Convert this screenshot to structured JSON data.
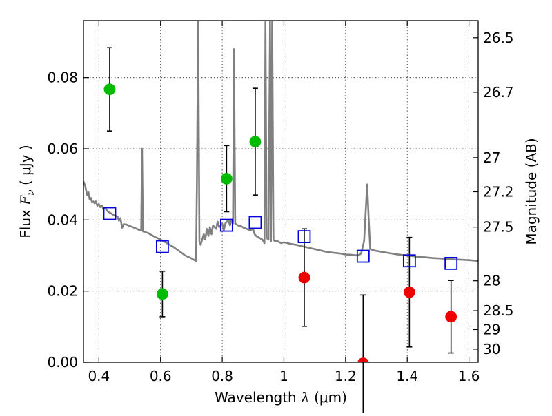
{
  "chart_data": {
    "type": "scatter",
    "title": "",
    "xlabel": {
      "prefix": "Wavelength  ",
      "symbol": "λ",
      "unit": " (μm)"
    },
    "ylabel": {
      "prefix": "Flux  ",
      "symbol": "F",
      "subscript": "ν",
      "unit": "  ( μJy )"
    },
    "y2label": "Magnitude (AB)",
    "xlim": [
      0.35,
      1.63
    ],
    "ylim": [
      0.0,
      0.096
    ],
    "grid": true,
    "x_ticks": [
      {
        "value": 0.4,
        "label": "0.4"
      },
      {
        "value": 0.6,
        "label": "0.6"
      },
      {
        "value": 0.8,
        "label": "0.8"
      },
      {
        "value": 1.0,
        "label": "1"
      },
      {
        "value": 1.2,
        "label": "1.2"
      },
      {
        "value": 1.4,
        "label": "1.4"
      },
      {
        "value": 1.6,
        "label": "1.6"
      }
    ],
    "y_ticks": [
      {
        "value": 0.0,
        "label": "0.00"
      },
      {
        "value": 0.02,
        "label": "0.02"
      },
      {
        "value": 0.04,
        "label": "0.04"
      },
      {
        "value": 0.06,
        "label": "0.06"
      },
      {
        "value": 0.08,
        "label": "0.08"
      }
    ],
    "y2_ticks": [
      {
        "flux": 0.0912,
        "label": "26.5"
      },
      {
        "flux": 0.0759,
        "label": "26.7"
      },
      {
        "flux": 0.0575,
        "label": "27"
      },
      {
        "flux": 0.0479,
        "label": "27.2"
      },
      {
        "flux": 0.038,
        "label": "27.5"
      },
      {
        "flux": 0.0229,
        "label": "28"
      },
      {
        "flux": 0.0145,
        "label": "28.5"
      },
      {
        "flux": 0.0092,
        "label": "29"
      },
      {
        "flux": 0.0037,
        "label": "30"
      }
    ],
    "series": [
      {
        "marker": "circle",
        "color": "#00bb00",
        "points": [
          {
            "x": 0.435,
            "y": 0.0767,
            "err": 0.0117
          },
          {
            "x": 0.606,
            "y": 0.0192,
            "err": 0.0064
          },
          {
            "x": 0.814,
            "y": 0.0516,
            "err": 0.0093
          },
          {
            "x": 0.907,
            "y": 0.062,
            "err": 0.015
          }
        ]
      },
      {
        "marker": "circle",
        "color": "#ee0000",
        "points": [
          {
            "x": 1.066,
            "y": 0.0238,
            "err": 0.0137
          },
          {
            "x": 1.257,
            "y": -0.0003,
            "err": 0.0192
          },
          {
            "x": 1.407,
            "y": 0.0197,
            "err": 0.0154
          },
          {
            "x": 1.542,
            "y": 0.0128,
            "err": 0.0102
          }
        ]
      },
      {
        "marker": "square",
        "color": "#0000dd",
        "points": [
          {
            "x": 0.435,
            "y": 0.0418
          },
          {
            "x": 0.606,
            "y": 0.0325
          },
          {
            "x": 0.814,
            "y": 0.0385
          },
          {
            "x": 0.907,
            "y": 0.0393
          },
          {
            "x": 1.066,
            "y": 0.0353
          },
          {
            "x": 1.257,
            "y": 0.0298
          },
          {
            "x": 1.407,
            "y": 0.0285
          },
          {
            "x": 1.542,
            "y": 0.0278
          }
        ]
      },
      {
        "type": "line",
        "color": "#808080",
        "points": [
          [
            0.35,
            0.0508
          ],
          [
            0.355,
            0.0498
          ],
          [
            0.358,
            0.0485
          ],
          [
            0.362,
            0.047
          ],
          [
            0.366,
            0.0478
          ],
          [
            0.37,
            0.0458
          ],
          [
            0.374,
            0.0462
          ],
          [
            0.378,
            0.0449
          ],
          [
            0.382,
            0.0452
          ],
          [
            0.386,
            0.0447
          ],
          [
            0.39,
            0.0452
          ],
          [
            0.395,
            0.044
          ],
          [
            0.4,
            0.0445
          ],
          [
            0.405,
            0.0436
          ],
          [
            0.41,
            0.044
          ],
          [
            0.415,
            0.043
          ],
          [
            0.42,
            0.0433
          ],
          [
            0.43,
            0.0423
          ],
          [
            0.44,
            0.0418
          ],
          [
            0.45,
            0.0413
          ],
          [
            0.46,
            0.041
          ],
          [
            0.465,
            0.0398
          ],
          [
            0.47,
            0.0405
          ],
          [
            0.475,
            0.0378
          ],
          [
            0.48,
            0.0388
          ],
          [
            0.49,
            0.0387
          ],
          [
            0.5,
            0.0383
          ],
          [
            0.51,
            0.038
          ],
          [
            0.52,
            0.0376
          ],
          [
            0.53,
            0.0372
          ],
          [
            0.537,
            0.037
          ],
          [
            0.54,
            0.06
          ],
          [
            0.543,
            0.0368
          ],
          [
            0.56,
            0.0363
          ],
          [
            0.58,
            0.0353
          ],
          [
            0.6,
            0.0345
          ],
          [
            0.62,
            0.0335
          ],
          [
            0.64,
            0.0325
          ],
          [
            0.66,
            0.0313
          ],
          [
            0.68,
            0.03
          ],
          [
            0.7,
            0.0292
          ],
          [
            0.715,
            0.0285
          ],
          [
            0.718,
            0.052
          ],
          [
            0.722,
            0.098
          ],
          [
            0.726,
            0.034
          ],
          [
            0.73,
            0.033
          ],
          [
            0.74,
            0.036
          ],
          [
            0.745,
            0.0345
          ],
          [
            0.75,
            0.0375
          ],
          [
            0.755,
            0.0355
          ],
          [
            0.76,
            0.038
          ],
          [
            0.765,
            0.036
          ],
          [
            0.77,
            0.0385
          ],
          [
            0.78,
            0.0375
          ],
          [
            0.785,
            0.0395
          ],
          [
            0.79,
            0.038
          ],
          [
            0.8,
            0.039
          ],
          [
            0.805,
            0.037
          ],
          [
            0.81,
            0.039
          ],
          [
            0.82,
            0.04
          ],
          [
            0.825,
            0.0385
          ],
          [
            0.83,
            0.04
          ],
          [
            0.835,
            0.039
          ],
          [
            0.838,
            0.088
          ],
          [
            0.842,
            0.039
          ],
          [
            0.85,
            0.0385
          ],
          [
            0.86,
            0.0383
          ],
          [
            0.87,
            0.0378
          ],
          [
            0.88,
            0.0375
          ],
          [
            0.89,
            0.037
          ],
          [
            0.9,
            0.0375
          ],
          [
            0.905,
            0.036
          ],
          [
            0.91,
            0.0355
          ],
          [
            0.92,
            0.035
          ],
          [
            0.93,
            0.0345
          ],
          [
            0.937,
            0.0335
          ],
          [
            0.94,
            0.096
          ],
          [
            0.944,
            0.035
          ],
          [
            0.95,
            0.0345
          ],
          [
            0.955,
            0.096
          ],
          [
            0.958,
            0.034
          ],
          [
            0.962,
            0.096
          ],
          [
            0.966,
            0.0345
          ],
          [
            0.97,
            0.034
          ],
          [
            0.98,
            0.034
          ],
          [
            0.99,
            0.0335
          ],
          [
            1.0,
            0.0337
          ],
          [
            1.02,
            0.0333
          ],
          [
            1.04,
            0.033
          ],
          [
            1.06,
            0.0326
          ],
          [
            1.08,
            0.0322
          ],
          [
            1.1,
            0.0318
          ],
          [
            1.12,
            0.0314
          ],
          [
            1.14,
            0.031
          ],
          [
            1.16,
            0.0308
          ],
          [
            1.18,
            0.0306
          ],
          [
            1.2,
            0.0303
          ],
          [
            1.22,
            0.0302
          ],
          [
            1.24,
            0.03
          ],
          [
            1.25,
            0.0305
          ],
          [
            1.26,
            0.034
          ],
          [
            1.265,
            0.042
          ],
          [
            1.27,
            0.05
          ],
          [
            1.275,
            0.04
          ],
          [
            1.28,
            0.0318
          ],
          [
            1.29,
            0.0315
          ],
          [
            1.3,
            0.0313
          ],
          [
            1.32,
            0.031
          ],
          [
            1.34,
            0.0307
          ],
          [
            1.36,
            0.0304
          ],
          [
            1.38,
            0.0302
          ],
          [
            1.4,
            0.03
          ],
          [
            1.42,
            0.0298
          ],
          [
            1.44,
            0.0296
          ],
          [
            1.46,
            0.0295
          ],
          [
            1.48,
            0.0293
          ],
          [
            1.5,
            0.0292
          ],
          [
            1.52,
            0.0291
          ],
          [
            1.54,
            0.029
          ],
          [
            1.56,
            0.0289
          ],
          [
            1.58,
            0.0288
          ],
          [
            1.6,
            0.0287
          ],
          [
            1.63,
            0.0285
          ]
        ]
      }
    ]
  }
}
